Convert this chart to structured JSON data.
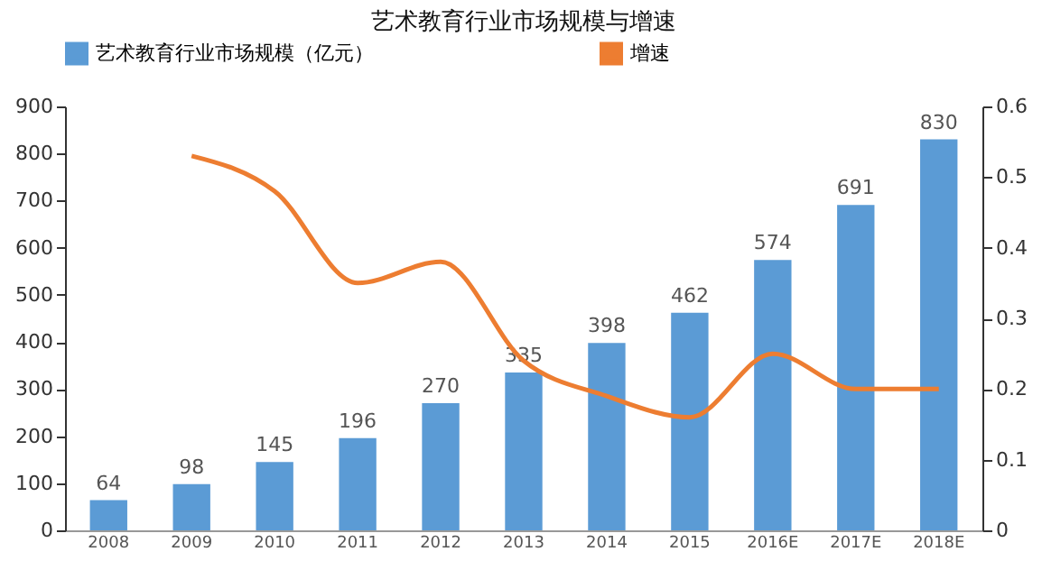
{
  "chart_data": {
    "type": "bar",
    "title": "艺术教育行业市场规模与增速",
    "categories": [
      "2008",
      "2009",
      "2010",
      "2011",
      "2012",
      "2013",
      "2014",
      "2015",
      "2016E",
      "2017E",
      "2018E"
    ],
    "series": [
      {
        "name": "艺术教育行业市场规模（亿元）",
        "color": "#5b9bd5",
        "values": [
          64,
          98,
          145,
          196,
          270,
          335,
          398,
          462,
          574,
          691,
          830
        ],
        "value_labels": [
          "64",
          "98",
          "145",
          "196",
          "270",
          "335",
          "398",
          "462",
          "574",
          "691",
          "830"
        ]
      },
      {
        "name": "增速",
        "type": "line",
        "axis": "y2",
        "color": "#ed7d31",
        "values": [
          null,
          0.53,
          0.48,
          0.35,
          0.38,
          0.24,
          0.19,
          0.16,
          0.25,
          0.2,
          0.2
        ]
      }
    ],
    "ylim": [
      0,
      900
    ],
    "yticks": [
      0,
      100,
      200,
      300,
      400,
      500,
      600,
      700,
      800,
      900
    ],
    "y2lim": [
      0,
      0.6
    ],
    "y2ticks": [
      0,
      0.1,
      0.2,
      0.3,
      0.4,
      0.5,
      0.6
    ],
    "grid": false,
    "legend": "top"
  }
}
